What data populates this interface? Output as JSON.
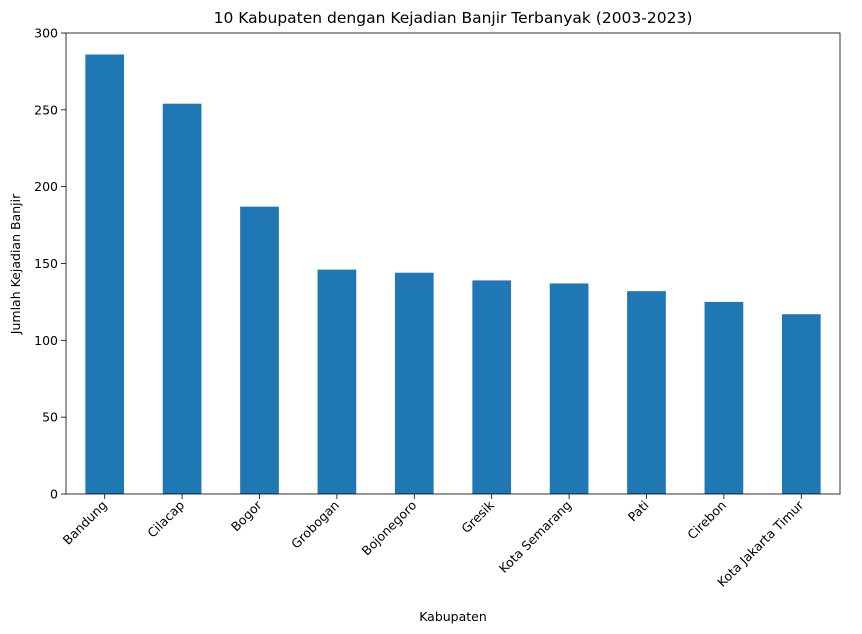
{
  "chart_data": {
    "type": "bar",
    "title": "10 Kabupaten dengan Kejadian Banjir Terbanyak (2003-2023)",
    "xlabel": "Kabupaten",
    "ylabel": "Jumlah Kejadian Banjir",
    "categories": [
      "Bandung",
      "Cilacap",
      "Bogor",
      "Grobogan",
      "Bojonegoro",
      "Gresik",
      "Kota Semarang",
      "Pati",
      "Cirebon",
      "Kota Jakarta Timur"
    ],
    "values": [
      286,
      254,
      187,
      146,
      144,
      139,
      137,
      132,
      125,
      117
    ],
    "ylim": [
      0,
      300
    ],
    "yticks": [
      0,
      50,
      100,
      150,
      200,
      250,
      300
    ],
    "xtick_rotation_deg": 45,
    "bar_color": "#1f77b4",
    "grid": false,
    "legend": false
  }
}
